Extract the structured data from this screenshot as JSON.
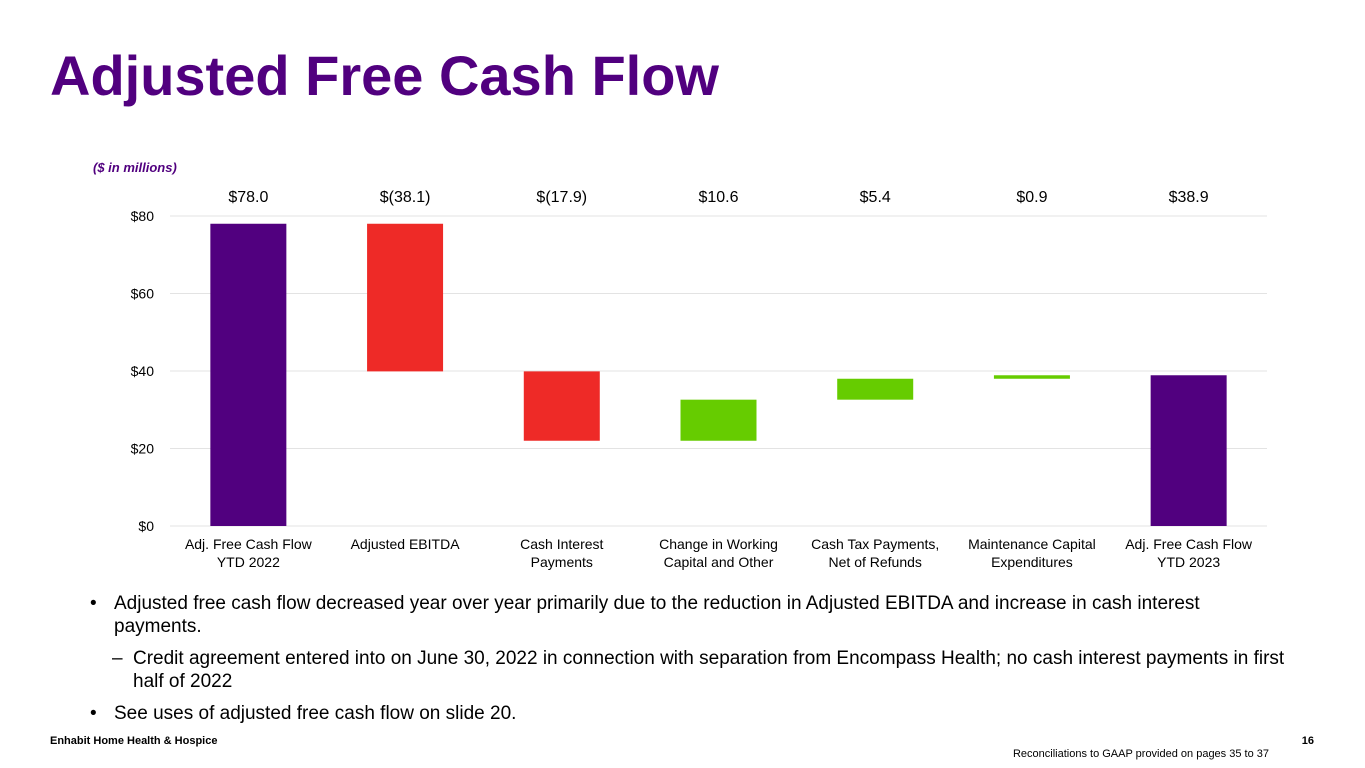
{
  "slide": {
    "title": "Adjusted Free Cash Flow",
    "units_note": "($ in millions)",
    "bullets": [
      "Adjusted free cash flow decreased year over year primarily due to the reduction in Adjusted EBITDA and increase in cash interest payments.",
      "See uses of adjusted free cash flow on slide 20."
    ],
    "sub_bullets": [
      "Credit agreement entered into on June 30, 2022 in connection with separation from Encompass Health; no cash interest payments in first half of 2022"
    ],
    "bullet_mark": "•",
    "sub_bullet_mark": "–",
    "footer": {
      "company": "Enhabit Home Health & Hospice",
      "page_number": "16",
      "note": "Reconciliations to GAAP provided on pages 35 to 37"
    }
  },
  "colors": {
    "title": "#51007f",
    "total": "#51007f",
    "decrease": "#ee2a27",
    "increase": "#66cc00",
    "grid": "#e3e3e3"
  },
  "chart_data": {
    "type": "waterfall",
    "title": "",
    "ylabel": "",
    "ylim": [
      0,
      80
    ],
    "yticks": [
      0,
      20,
      40,
      60,
      80
    ],
    "ytick_labels": [
      "$0",
      "$20",
      "$40",
      "$60",
      "$80"
    ],
    "grid": true,
    "categories": [
      [
        "Adj. Free Cash Flow",
        "YTD 2022"
      ],
      [
        "Adjusted EBITDA"
      ],
      [
        "Cash Interest",
        "Payments"
      ],
      [
        "Change in Working",
        "Capital and Other"
      ],
      [
        "Cash Tax Payments,",
        "Net of Refunds"
      ],
      [
        "Maintenance Capital",
        "Expenditures"
      ],
      [
        "Adj. Free Cash Flow",
        "YTD 2023"
      ]
    ],
    "values": [
      78.0,
      -38.1,
      -17.9,
      10.6,
      5.4,
      0.9,
      38.9
    ],
    "bar_kinds": [
      "total",
      "decrease",
      "decrease",
      "increase",
      "increase",
      "increase",
      "total"
    ],
    "value_labels": [
      "$78.0",
      "$(38.1)",
      "$(17.9)",
      "$10.6",
      "$5.4",
      "$0.9",
      "$38.9"
    ]
  }
}
